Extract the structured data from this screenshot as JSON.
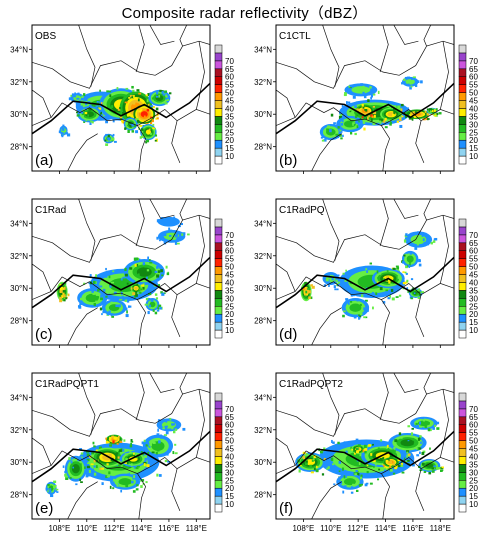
{
  "figure": {
    "title": "Composite radar reflectivity（dBZ）"
  },
  "colorbar": {
    "levels": [
      "10",
      "15",
      "20",
      "25",
      "30",
      "35",
      "40",
      "45",
      "50",
      "55",
      "60",
      "65",
      "70"
    ],
    "colors": [
      "#ffffff",
      "#8fd3f0",
      "#1e90ff",
      "#66ee44",
      "#22bb22",
      "#118811",
      "#ffee00",
      "#f0c020",
      "#ff9900",
      "#ff2200",
      "#cc0000",
      "#aa1122",
      "#cc55dd",
      "#9944cc",
      "#d8d8d8"
    ]
  },
  "chart_data": [
    {
      "type": "heatmap",
      "label": "OBS",
      "letter": "(a)",
      "xlim": [
        106,
        119
      ],
      "ylim": [
        26.5,
        35.5
      ],
      "x_ticks": [
        "108°E",
        "110°E",
        "112°E",
        "114°E",
        "116°E",
        "118°E"
      ],
      "y_ticks": [
        "28°N",
        "30°N",
        "32°N",
        "34°N"
      ],
      "show_xticks": false,
      "cells": [
        {
          "lon": 111.0,
          "lat": 30.5,
          "rx": 1.8,
          "ry": 0.9,
          "dbz": 25
        },
        {
          "lon": 112.5,
          "lat": 30.6,
          "rx": 1.6,
          "ry": 1.0,
          "dbz": 35
        },
        {
          "lon": 113.6,
          "lat": 30.4,
          "rx": 1.2,
          "ry": 1.0,
          "dbz": 45
        },
        {
          "lon": 114.2,
          "lat": 30.0,
          "rx": 0.8,
          "ry": 0.6,
          "dbz": 50
        },
        {
          "lon": 110.2,
          "lat": 30.0,
          "rx": 0.9,
          "ry": 0.5,
          "dbz": 30
        },
        {
          "lon": 109.3,
          "lat": 31.0,
          "rx": 0.5,
          "ry": 0.3,
          "dbz": 20
        },
        {
          "lon": 115.3,
          "lat": 31.0,
          "rx": 0.8,
          "ry": 0.5,
          "dbz": 30
        },
        {
          "lon": 114.5,
          "lat": 28.9,
          "rx": 0.6,
          "ry": 0.5,
          "dbz": 35
        },
        {
          "lon": 113.2,
          "lat": 29.4,
          "rx": 0.5,
          "ry": 0.4,
          "dbz": 30
        },
        {
          "lon": 108.3,
          "lat": 29.0,
          "rx": 0.3,
          "ry": 0.3,
          "dbz": 20
        },
        {
          "lon": 111.6,
          "lat": 28.5,
          "rx": 0.4,
          "ry": 0.3,
          "dbz": 25
        }
      ]
    },
    {
      "type": "heatmap",
      "label": "C1CTL",
      "letter": "(b)",
      "xlim": [
        106,
        119
      ],
      "ylim": [
        26.5,
        35.5
      ],
      "x_ticks": [
        "108°E",
        "110°E",
        "112°E",
        "114°E",
        "116°E",
        "118°E"
      ],
      "y_ticks": [
        "28°N",
        "30°N",
        "32°N",
        "34°N"
      ],
      "show_xticks": false,
      "cells": [
        {
          "lon": 113.2,
          "lat": 30.1,
          "rx": 2.6,
          "ry": 0.8,
          "dbz": 30
        },
        {
          "lon": 112.5,
          "lat": 30.2,
          "rx": 0.7,
          "ry": 0.4,
          "dbz": 45
        },
        {
          "lon": 114.4,
          "lat": 30.0,
          "rx": 0.8,
          "ry": 0.4,
          "dbz": 40
        },
        {
          "lon": 116.3,
          "lat": 30.0,
          "rx": 0.9,
          "ry": 0.3,
          "dbz": 45
        },
        {
          "lon": 111.4,
          "lat": 29.4,
          "rx": 1.0,
          "ry": 0.5,
          "dbz": 25
        },
        {
          "lon": 112.2,
          "lat": 31.5,
          "rx": 1.2,
          "ry": 0.4,
          "dbz": 20
        },
        {
          "lon": 110.0,
          "lat": 28.9,
          "rx": 0.8,
          "ry": 0.5,
          "dbz": 25
        },
        {
          "lon": 115.8,
          "lat": 32.0,
          "rx": 0.6,
          "ry": 0.3,
          "dbz": 20
        },
        {
          "lon": 117.4,
          "lat": 30.2,
          "rx": 0.4,
          "ry": 0.2,
          "dbz": 35
        }
      ]
    },
    {
      "type": "heatmap",
      "label": "C1Rad",
      "letter": "(c)",
      "xlim": [
        106,
        119
      ],
      "ylim": [
        26.5,
        35.5
      ],
      "x_ticks": [
        "108°E",
        "110°E",
        "112°E",
        "114°E",
        "116°E",
        "118°E"
      ],
      "y_ticks": [
        "28°N",
        "30°N",
        "32°N",
        "34°N"
      ],
      "show_xticks": false,
      "cells": [
        {
          "lon": 112.7,
          "lat": 30.2,
          "rx": 2.5,
          "ry": 1.0,
          "dbz": 25
        },
        {
          "lon": 114.2,
          "lat": 31.0,
          "rx": 1.5,
          "ry": 0.8,
          "dbz": 30
        },
        {
          "lon": 110.4,
          "lat": 29.4,
          "rx": 1.1,
          "ry": 0.6,
          "dbz": 25
        },
        {
          "lon": 108.2,
          "lat": 29.8,
          "rx": 0.4,
          "ry": 0.6,
          "dbz": 40
        },
        {
          "lon": 116.2,
          "lat": 33.2,
          "rx": 1.0,
          "ry": 0.4,
          "dbz": 20
        },
        {
          "lon": 116.0,
          "lat": 34.1,
          "rx": 0.8,
          "ry": 0.3,
          "dbz": 15
        },
        {
          "lon": 112.0,
          "lat": 28.8,
          "rx": 0.9,
          "ry": 0.5,
          "dbz": 25
        },
        {
          "lon": 113.6,
          "lat": 30.0,
          "rx": 0.4,
          "ry": 0.3,
          "dbz": 40
        },
        {
          "lon": 114.8,
          "lat": 29.0,
          "rx": 0.5,
          "ry": 0.4,
          "dbz": 25
        }
      ]
    },
    {
      "type": "heatmap",
      "label": "C1RadPQ",
      "letter": "(d)",
      "xlim": [
        106,
        119
      ],
      "ylim": [
        26.5,
        35.5
      ],
      "x_ticks": [
        "108°E",
        "110°E",
        "112°E",
        "114°E",
        "116°E",
        "118°E"
      ],
      "y_ticks": [
        "28°N",
        "30°N",
        "32°N",
        "34°N"
      ],
      "show_xticks": false,
      "cells": [
        {
          "lon": 113.0,
          "lat": 30.4,
          "rx": 2.4,
          "ry": 1.0,
          "dbz": 25
        },
        {
          "lon": 114.2,
          "lat": 30.6,
          "rx": 1.2,
          "ry": 0.6,
          "dbz": 35
        },
        {
          "lon": 108.2,
          "lat": 29.8,
          "rx": 0.4,
          "ry": 0.6,
          "dbz": 40
        },
        {
          "lon": 116.4,
          "lat": 33.0,
          "rx": 1.0,
          "ry": 0.5,
          "dbz": 20
        },
        {
          "lon": 115.8,
          "lat": 31.8,
          "rx": 0.6,
          "ry": 0.5,
          "dbz": 25
        },
        {
          "lon": 111.8,
          "lat": 28.8,
          "rx": 1.0,
          "ry": 0.6,
          "dbz": 25
        },
        {
          "lon": 110.0,
          "lat": 30.6,
          "rx": 0.6,
          "ry": 0.4,
          "dbz": 20
        },
        {
          "lon": 116.2,
          "lat": 29.7,
          "rx": 0.5,
          "ry": 0.3,
          "dbz": 30
        }
      ]
    },
    {
      "type": "heatmap",
      "label": "C1RadPQPT1",
      "letter": "(e)",
      "xlim": [
        106,
        119
      ],
      "ylim": [
        26.5,
        35.5
      ],
      "x_ticks": [
        "108°E",
        "110°E",
        "112°E",
        "114°E",
        "116°E",
        "118°E"
      ],
      "y_ticks": [
        "28°N",
        "30°N",
        "32°N",
        "34°N"
      ],
      "show_xticks": true,
      "cells": [
        {
          "lon": 112.3,
          "lat": 30.0,
          "rx": 3.0,
          "ry": 1.2,
          "dbz": 25
        },
        {
          "lon": 111.5,
          "lat": 30.3,
          "rx": 1.2,
          "ry": 0.6,
          "dbz": 40
        },
        {
          "lon": 113.4,
          "lat": 30.2,
          "rx": 1.0,
          "ry": 0.5,
          "dbz": 35
        },
        {
          "lon": 109.2,
          "lat": 29.6,
          "rx": 0.8,
          "ry": 0.8,
          "dbz": 30
        },
        {
          "lon": 115.2,
          "lat": 31.0,
          "rx": 1.1,
          "ry": 0.7,
          "dbz": 25
        },
        {
          "lon": 116.0,
          "lat": 32.3,
          "rx": 0.9,
          "ry": 0.4,
          "dbz": 20
        },
        {
          "lon": 112.8,
          "lat": 28.8,
          "rx": 1.1,
          "ry": 0.5,
          "dbz": 25
        },
        {
          "lon": 107.4,
          "lat": 28.4,
          "rx": 0.4,
          "ry": 0.4,
          "dbz": 25
        },
        {
          "lon": 112.0,
          "lat": 31.4,
          "rx": 0.6,
          "ry": 0.3,
          "dbz": 45
        }
      ]
    },
    {
      "type": "heatmap",
      "label": "C1RadPQPT2",
      "letter": "(f)",
      "xlim": [
        106,
        119
      ],
      "ylim": [
        26.5,
        35.5
      ],
      "x_ticks": [
        "108°E",
        "110°E",
        "112°E",
        "114°E",
        "116°E",
        "118°E"
      ],
      "y_ticks": [
        "28°N",
        "30°N",
        "32°N",
        "34°N"
      ],
      "show_xticks": true,
      "cells": [
        {
          "lon": 112.6,
          "lat": 30.2,
          "rx": 3.5,
          "ry": 1.2,
          "dbz": 25
        },
        {
          "lon": 113.8,
          "lat": 30.4,
          "rx": 1.6,
          "ry": 0.7,
          "dbz": 35
        },
        {
          "lon": 108.5,
          "lat": 30.0,
          "rx": 1.1,
          "ry": 0.6,
          "dbz": 35
        },
        {
          "lon": 115.6,
          "lat": 31.2,
          "rx": 1.4,
          "ry": 0.6,
          "dbz": 30
        },
        {
          "lon": 116.8,
          "lat": 32.4,
          "rx": 1.0,
          "ry": 0.4,
          "dbz": 25
        },
        {
          "lon": 117.2,
          "lat": 29.8,
          "rx": 0.8,
          "ry": 0.4,
          "dbz": 30
        },
        {
          "lon": 111.4,
          "lat": 28.8,
          "rx": 1.0,
          "ry": 0.5,
          "dbz": 25
        },
        {
          "lon": 114.4,
          "lat": 30.0,
          "rx": 0.6,
          "ry": 0.3,
          "dbz": 45
        },
        {
          "lon": 112.0,
          "lat": 30.8,
          "rx": 0.5,
          "ry": 0.3,
          "dbz": 40
        }
      ]
    }
  ]
}
